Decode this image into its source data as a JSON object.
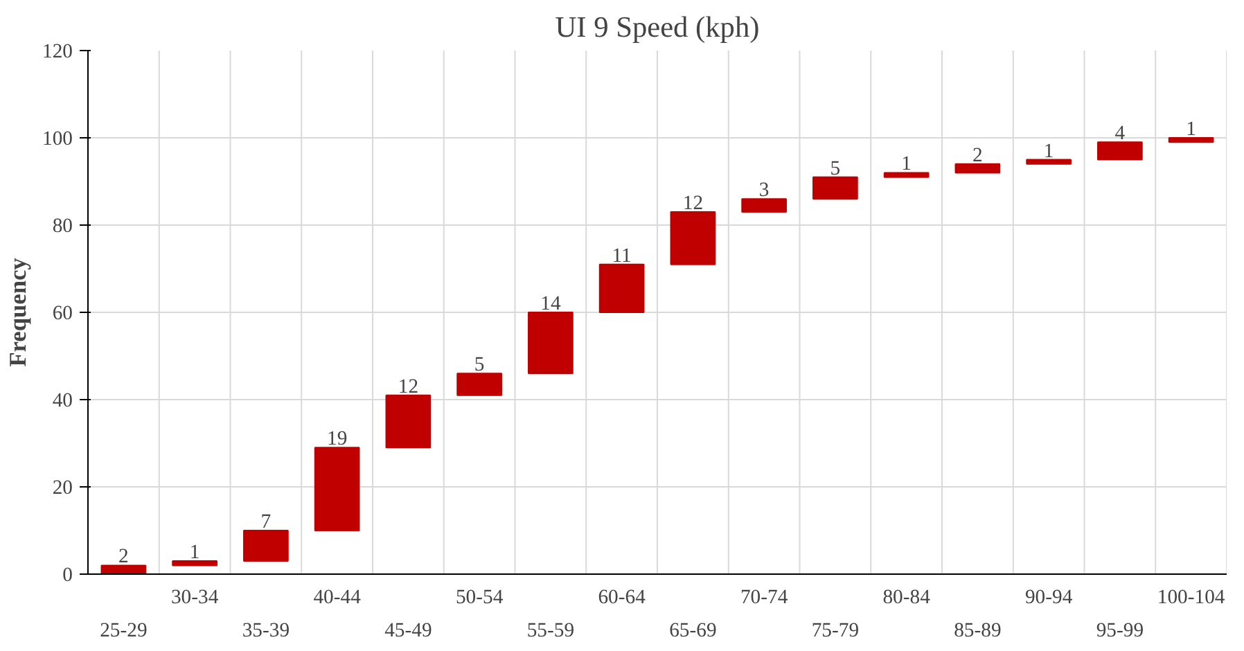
{
  "chart_data": {
    "type": "bar",
    "title": "UI 9 Speed (kph)",
    "ylabel": "Frequency",
    "categories": [
      "25-29",
      "30-34",
      "35-39",
      "40-44",
      "45-49",
      "50-54",
      "55-59",
      "60-64",
      "65-69",
      "70-74",
      "75-79",
      "80-84",
      "85-89",
      "90-94",
      "95-99",
      "100-104"
    ],
    "values": [
      2,
      1,
      7,
      19,
      12,
      5,
      14,
      11,
      12,
      3,
      5,
      1,
      2,
      1,
      4,
      1
    ],
    "base": [
      0,
      2,
      3,
      10,
      29,
      41,
      46,
      60,
      71,
      83,
      86,
      91,
      92,
      94,
      95,
      99
    ],
    "color": "#c00000",
    "ylim": [
      0,
      120
    ],
    "yticks": [
      0,
      20,
      40,
      60,
      80,
      100,
      120
    ],
    "grid": true,
    "data_labels": true
  }
}
